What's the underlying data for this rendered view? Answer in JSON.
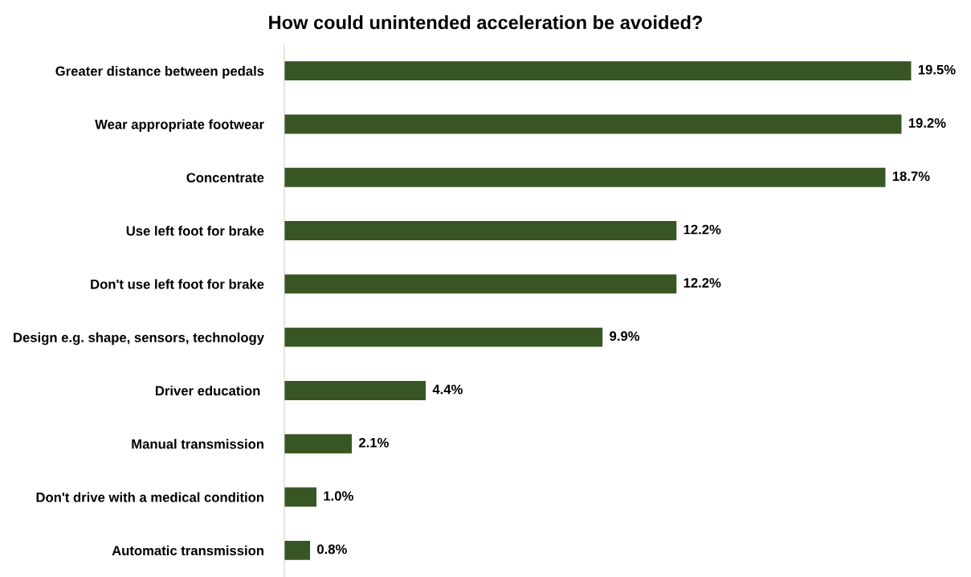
{
  "chart_data": {
    "type": "bar",
    "orientation": "horizontal",
    "title": "How could unintended acceleration be avoided?",
    "categories": [
      "Greater distance between pedals",
      "Wear appropriate footwear",
      "Concentrate",
      "Use left foot for brake",
      "Don't use left foot for brake",
      "Design e.g. shape, sensors, technology",
      "Driver education ",
      "Manual transmission",
      "Don't drive with a medical condition",
      "Automatic transmission"
    ],
    "values": [
      19.5,
      19.2,
      18.7,
      12.2,
      12.2,
      9.9,
      4.4,
      2.1,
      1.0,
      0.8
    ],
    "value_labels": [
      "19.5%",
      "19.2%",
      "18.7%",
      "12.2%",
      "12.2%",
      "9.9%",
      "4.4%",
      "2.1%",
      "1.0%",
      "0.8%"
    ],
    "color": "#375623",
    "tick_labels": "y",
    "grid": false,
    "legend": false
  }
}
